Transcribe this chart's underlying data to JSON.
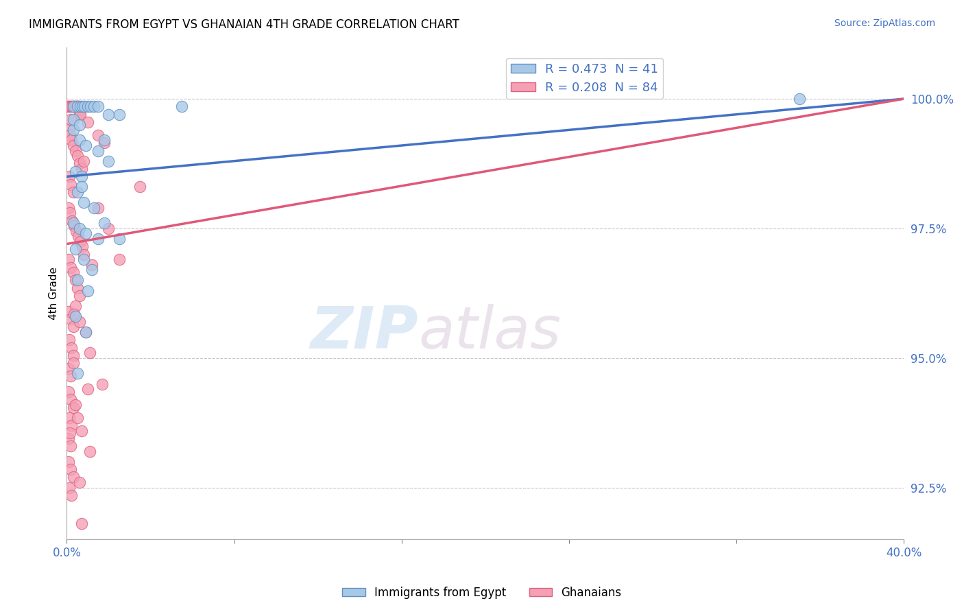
{
  "title": "IMMIGRANTS FROM EGYPT VS GHANAIAN 4TH GRADE CORRELATION CHART",
  "source": "Source: ZipAtlas.com",
  "ylabel": "4th Grade",
  "xlim": [
    0.0,
    40.0
  ],
  "ylim": [
    91.5,
    101.0
  ],
  "yticks": [
    92.5,
    95.0,
    97.5,
    100.0
  ],
  "ytick_labels": [
    "92.5%",
    "95.0%",
    "97.5%",
    "100.0%"
  ],
  "xticks": [
    0.0,
    8.0,
    16.0,
    24.0,
    32.0,
    40.0
  ],
  "blue_R": 0.473,
  "blue_N": 41,
  "pink_R": 0.208,
  "pink_N": 84,
  "blue_color": "#a8c8e8",
  "pink_color": "#f4a0b5",
  "blue_edge_color": "#6090c0",
  "pink_edge_color": "#e06080",
  "blue_line_color": "#4472c4",
  "pink_line_color": "#e05878",
  "legend_label_blue": "Immigrants from Egypt",
  "legend_label_pink": "Ghanaians",
  "watermark_zip": "ZIP",
  "watermark_atlas": "atlas",
  "blue_line_x": [
    0.0,
    40.0
  ],
  "blue_line_y": [
    98.5,
    100.0
  ],
  "pink_line_x": [
    0.0,
    40.0
  ],
  "pink_line_y": [
    97.2,
    100.0
  ],
  "blue_dots": [
    [
      0.3,
      99.85
    ],
    [
      0.5,
      99.85
    ],
    [
      0.65,
      99.85
    ],
    [
      0.75,
      99.85
    ],
    [
      0.85,
      99.85
    ],
    [
      1.0,
      99.85
    ],
    [
      1.15,
      99.85
    ],
    [
      1.3,
      99.85
    ],
    [
      1.5,
      99.85
    ],
    [
      2.0,
      99.7
    ],
    [
      2.5,
      99.7
    ],
    [
      5.5,
      99.85
    ],
    [
      0.3,
      99.4
    ],
    [
      0.6,
      99.2
    ],
    [
      0.9,
      99.1
    ],
    [
      1.5,
      99.0
    ],
    [
      2.0,
      98.8
    ],
    [
      0.4,
      98.6
    ],
    [
      0.7,
      98.5
    ],
    [
      0.5,
      98.2
    ],
    [
      0.8,
      98.0
    ],
    [
      1.3,
      97.9
    ],
    [
      0.3,
      97.6
    ],
    [
      0.6,
      97.5
    ],
    [
      0.9,
      97.4
    ],
    [
      1.5,
      97.3
    ],
    [
      0.4,
      97.1
    ],
    [
      0.8,
      96.9
    ],
    [
      1.2,
      96.7
    ],
    [
      0.5,
      96.5
    ],
    [
      1.0,
      96.3
    ],
    [
      0.4,
      95.8
    ],
    [
      0.9,
      95.5
    ],
    [
      0.5,
      94.7
    ],
    [
      2.5,
      97.3
    ],
    [
      35.0,
      100.0
    ],
    [
      0.3,
      99.6
    ],
    [
      0.6,
      99.5
    ],
    [
      1.8,
      99.2
    ],
    [
      0.7,
      98.3
    ],
    [
      1.8,
      97.6
    ]
  ],
  "pink_dots": [
    [
      0.05,
      99.85
    ],
    [
      0.1,
      99.85
    ],
    [
      0.15,
      99.85
    ],
    [
      0.2,
      99.85
    ],
    [
      0.25,
      99.85
    ],
    [
      0.3,
      99.85
    ],
    [
      0.35,
      99.85
    ],
    [
      0.4,
      99.85
    ],
    [
      0.45,
      99.85
    ],
    [
      0.5,
      99.85
    ],
    [
      0.55,
      99.85
    ],
    [
      0.6,
      99.7
    ],
    [
      0.65,
      99.7
    ],
    [
      0.08,
      99.4
    ],
    [
      0.15,
      99.3
    ],
    [
      0.22,
      99.2
    ],
    [
      0.3,
      99.1
    ],
    [
      0.4,
      99.0
    ],
    [
      0.5,
      98.9
    ],
    [
      0.6,
      98.75
    ],
    [
      0.7,
      98.65
    ],
    [
      0.12,
      98.5
    ],
    [
      0.2,
      98.35
    ],
    [
      0.3,
      98.2
    ],
    [
      0.08,
      97.9
    ],
    [
      0.15,
      97.8
    ],
    [
      0.25,
      97.65
    ],
    [
      0.35,
      97.55
    ],
    [
      0.45,
      97.45
    ],
    [
      0.55,
      97.35
    ],
    [
      0.65,
      97.25
    ],
    [
      0.75,
      97.15
    ],
    [
      0.1,
      96.9
    ],
    [
      0.2,
      96.75
    ],
    [
      0.3,
      96.65
    ],
    [
      0.4,
      96.5
    ],
    [
      0.5,
      96.35
    ],
    [
      0.6,
      96.2
    ],
    [
      0.1,
      95.9
    ],
    [
      0.2,
      95.75
    ],
    [
      0.3,
      95.6
    ],
    [
      0.12,
      95.35
    ],
    [
      0.22,
      95.2
    ],
    [
      0.32,
      95.05
    ],
    [
      0.1,
      94.8
    ],
    [
      0.2,
      94.65
    ],
    [
      0.1,
      94.35
    ],
    [
      0.2,
      94.2
    ],
    [
      0.3,
      94.05
    ],
    [
      0.12,
      93.85
    ],
    [
      0.22,
      93.7
    ],
    [
      0.1,
      93.45
    ],
    [
      0.2,
      93.3
    ],
    [
      0.1,
      93.0
    ],
    [
      0.2,
      92.85
    ],
    [
      0.3,
      92.7
    ],
    [
      0.12,
      92.5
    ],
    [
      0.22,
      92.35
    ],
    [
      1.0,
      99.55
    ],
    [
      1.5,
      99.3
    ],
    [
      1.8,
      99.15
    ],
    [
      3.5,
      98.3
    ],
    [
      0.8,
      97.0
    ],
    [
      1.2,
      96.8
    ],
    [
      2.0,
      97.5
    ],
    [
      0.6,
      95.7
    ],
    [
      1.1,
      95.1
    ],
    [
      1.7,
      94.5
    ],
    [
      0.4,
      94.1
    ],
    [
      0.7,
      93.6
    ],
    [
      1.1,
      93.2
    ],
    [
      0.6,
      92.6
    ],
    [
      0.5,
      93.85
    ],
    [
      0.7,
      91.8
    ],
    [
      0.2,
      99.6
    ],
    [
      0.8,
      98.8
    ],
    [
      1.5,
      97.9
    ],
    [
      2.5,
      96.9
    ],
    [
      0.4,
      96.0
    ],
    [
      0.9,
      95.5
    ],
    [
      0.3,
      94.9
    ],
    [
      1.0,
      94.4
    ],
    [
      0.15,
      93.55
    ],
    [
      0.35,
      95.85
    ]
  ]
}
